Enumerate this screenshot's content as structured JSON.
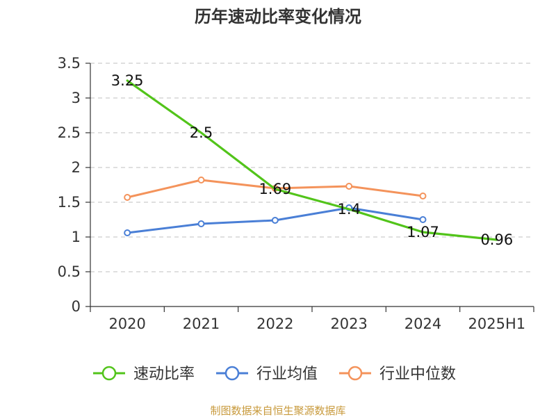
{
  "chart_data": {
    "type": "line",
    "title": "历年速动比率变化情况",
    "categories": [
      "2020",
      "2021",
      "2022",
      "2023",
      "2024",
      "2025H1"
    ],
    "ylim": [
      0,
      3.5
    ],
    "yticks": [
      "0",
      "0.5",
      "1",
      "1.5",
      "2",
      "2.5",
      "3",
      "3.5"
    ],
    "grid": true,
    "legend_position": "bottom",
    "series": [
      {
        "name": "速动比率",
        "color": "#52c41a",
        "marker": "none",
        "show_labels": true,
        "labels": [
          "3.25",
          "2.5",
          "1.69",
          "1.4",
          "1.07",
          "0.96"
        ],
        "values": [
          3.25,
          2.5,
          1.69,
          1.4,
          1.07,
          0.96
        ]
      },
      {
        "name": "行业均值",
        "color": "#4a7fd6",
        "marker": "circle",
        "show_labels": false,
        "values": [
          1.06,
          1.19,
          1.24,
          1.42,
          1.25,
          null
        ]
      },
      {
        "name": "行业中位数",
        "color": "#f4935b",
        "marker": "circle",
        "show_labels": false,
        "values": [
          1.57,
          1.82,
          1.7,
          1.73,
          1.59,
          null
        ]
      }
    ]
  },
  "source_text": "制图数据来自恒生聚源数据库",
  "source_color": "#c89a3c"
}
